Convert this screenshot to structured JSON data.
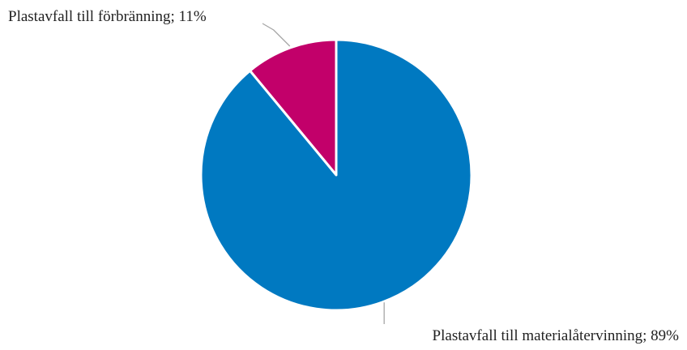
{
  "chart_data": {
    "type": "pie",
    "title": "",
    "slices": [
      {
        "name": "Plastavfall till förbränning",
        "value": 11,
        "label": "Plastavfall till förbränning; 11%",
        "color": "#C2006A"
      },
      {
        "name": "Plastavfall till materialåtervinning",
        "value": 89,
        "label": "Plastavfall till materialåtervinning; 89%",
        "color": "#0079C1"
      }
    ],
    "start_angle": "12 o'clock",
    "direction": "counterclockwise",
    "slice_border_color": "#FFFFFF",
    "leader_line_color": "#A6A6A6",
    "legend": "none"
  }
}
